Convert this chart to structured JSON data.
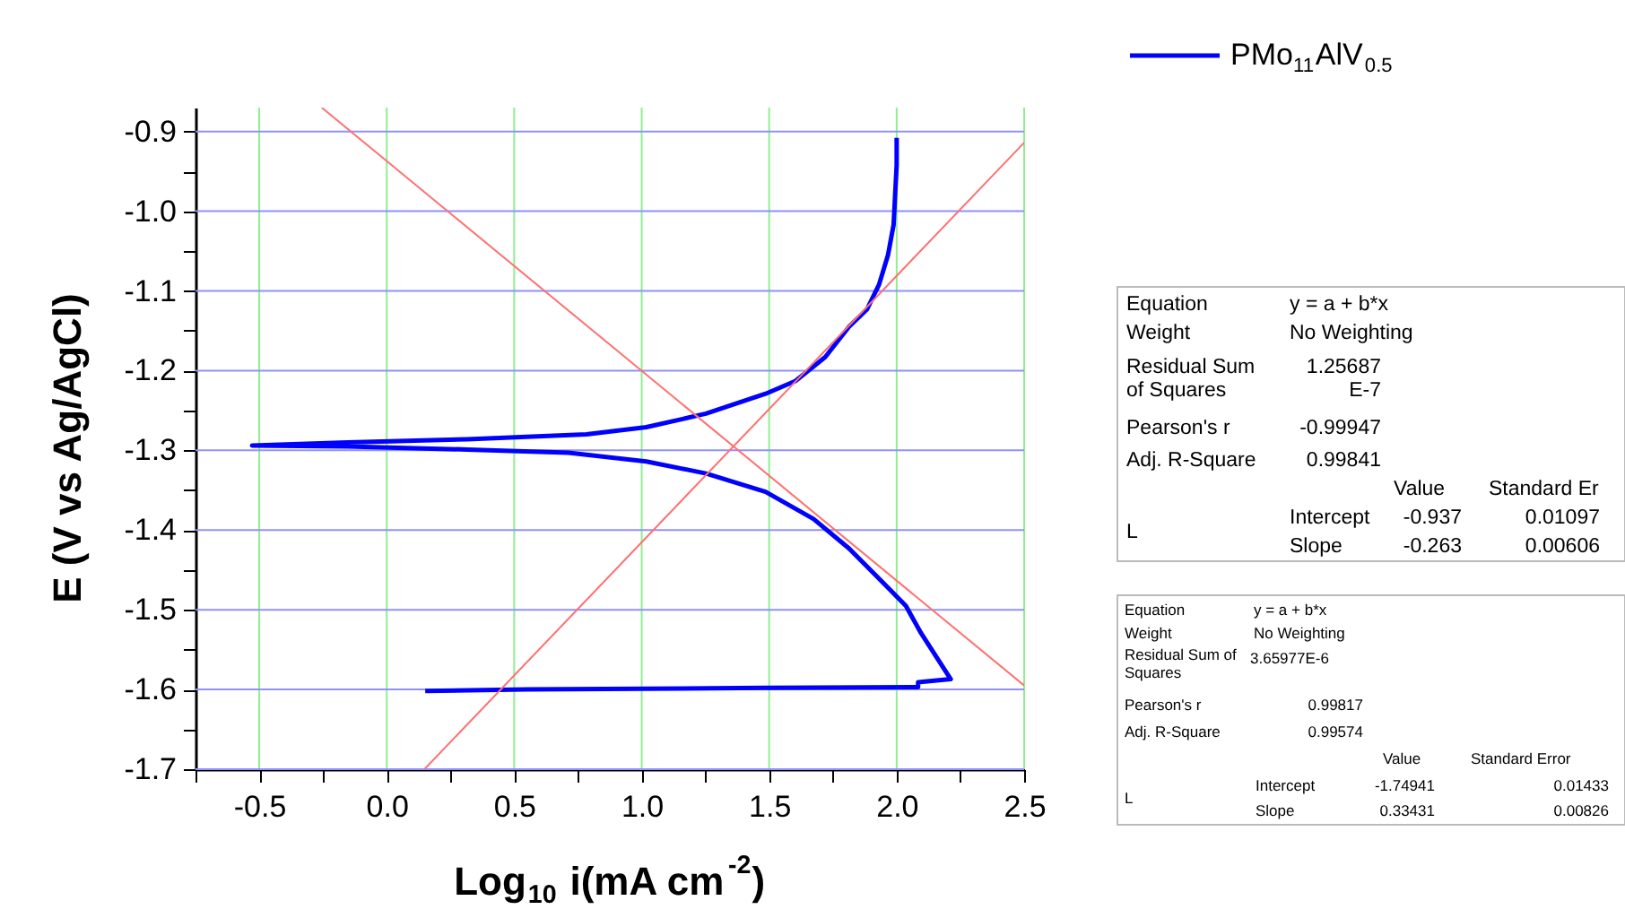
{
  "chart_data": {
    "type": "line",
    "xlabel": "Log$_{10}$ i(mA cm$^{-2}$)",
    "ylabel": "E (V vs Ag/AgCl)",
    "xlim": [
      -0.75,
      2.5
    ],
    "ylim": [
      -1.7,
      -0.87
    ],
    "xticks": [
      {
        "value": -0.75,
        "label": null
      },
      -0.5,
      {
        "value": -0.25,
        "label": null
      },
      {
        "value": 0,
        "label": "0.0"
      },
      {
        "value": 0.25,
        "label": null
      },
      0.5,
      {
        "value": 0.75,
        "label": null
      },
      {
        "value": 1,
        "label": "1.0"
      },
      {
        "value": 1.25,
        "label": null
      },
      1.5,
      {
        "value": 1.75,
        "label": null
      },
      {
        "value": 2,
        "label": "2.0"
      },
      {
        "value": 2.25,
        "label": null
      },
      2.5
    ],
    "yticks": [
      -1.7,
      {
        "value": -1.65,
        "label": null
      },
      -1.6,
      {
        "value": -1.55,
        "label": null
      },
      -1.5,
      {
        "value": -1.45,
        "label": null
      },
      -1.4,
      {
        "value": -1.35,
        "label": null
      },
      -1.3,
      {
        "value": -1.25,
        "label": null
      },
      -1.2,
      {
        "value": -1.15,
        "label": null
      },
      -1.1,
      {
        "value": -1.05,
        "label": null
      },
      {
        "value": -1.0,
        "label": "-1.0"
      },
      {
        "value": -0.95,
        "label": null
      },
      -0.9
    ],
    "grid": true,
    "legend": "top right",
    "series": [
      {
        "name": "PMo$_{11}$AlV$_{0.5}$",
        "color": "#0000ff",
        "x": [
          2.0,
          2.0,
          1.988,
          1.966,
          1.931,
          1.884,
          1.813,
          1.72,
          1.603,
          1.486,
          1.252,
          1.018,
          0.783,
          0.315,
          -0.153,
          -0.528,
          -0.153,
          0.315,
          0.713,
          1.018,
          1.252,
          1.486,
          1.674,
          1.813,
          1.931,
          2.036,
          2.095,
          2.212,
          2.084,
          2.084,
          1.486,
          0.549,
          0.151
        ],
        "values": [
          -0.908,
          -0.942,
          -1.017,
          -1.055,
          -1.092,
          -1.123,
          -1.145,
          -1.183,
          -1.213,
          -1.229,
          -1.254,
          -1.271,
          -1.28,
          -1.286,
          -1.29,
          -1.294,
          -1.295,
          -1.299,
          -1.303,
          -1.314,
          -1.329,
          -1.352,
          -1.386,
          -1.423,
          -1.461,
          -1.495,
          -1.529,
          -1.587,
          -1.591,
          -1.597,
          -1.598,
          -1.6,
          -1.602
        ]
      },
      {
        "type": "line",
        "color": "#ff7070",
        "x": [
          -0.255,
          2.5
        ],
        "values": [
          -0.87,
          -1.595
        ]
      },
      {
        "type": "line",
        "color": "#ff7070",
        "x": [
          0.148,
          2.5
        ],
        "values": [
          -1.7,
          -0.914
        ]
      }
    ],
    "annotations": [
      "Equation",
      "y = a + b*x",
      "Weight",
      "No Weighting",
      "Residual Sum\nof Squares",
      "1.25687\nE-7",
      "Pearson's r",
      "-0.99947",
      "Adj. R-Square",
      "0.99841",
      "Value",
      "Standard Er",
      "L",
      "Intercept",
      "-0.937",
      "0.01097",
      "Slope",
      "-0.263",
      "0.00606",
      "Equation",
      "y = a + b*x",
      "Weight",
      "No Weighting",
      "Residual Sum of\nSquares",
      "3.65977E-6",
      "Pearson's r",
      "0.99817",
      "Adj. R-Square",
      "0.99574",
      "Value",
      "Standard Error",
      "L",
      "Intercept",
      "-1.74941",
      "0.01433",
      "Slope",
      "0.33431",
      "0.00826"
    ]
  }
}
